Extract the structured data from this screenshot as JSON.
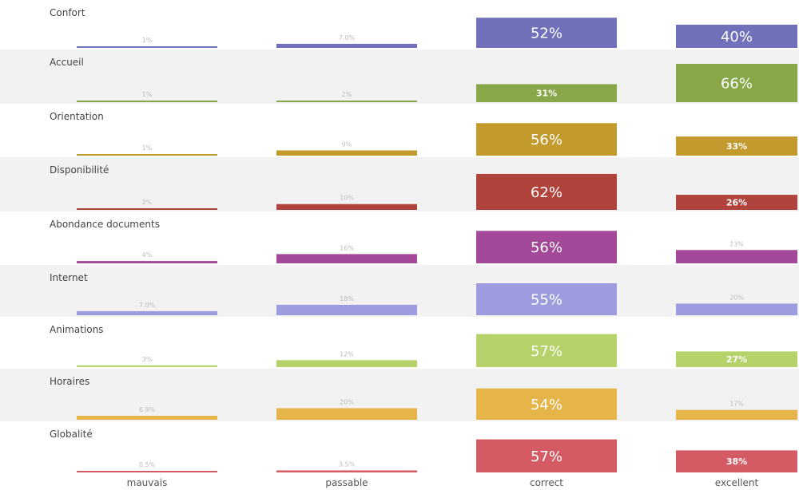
{
  "chart_data": {
    "type": "bar",
    "categories": [
      "mauvais",
      "passable",
      "correct",
      "excellent"
    ],
    "rows": [
      {
        "label": "Confort",
        "values": [
          1,
          7.0,
          52,
          40
        ],
        "labels": [
          "1%",
          "7.0%",
          "52%",
          "40%"
        ],
        "color": "#7070bb"
      },
      {
        "label": "Accueil",
        "values": [
          1,
          2,
          31,
          66
        ],
        "labels": [
          "1%",
          "2%",
          "31%",
          "66%"
        ],
        "color": "#87a748"
      },
      {
        "label": "Orientation",
        "values": [
          1,
          9,
          56,
          33
        ],
        "labels": [
          "1%",
          "9%",
          "56%",
          "33%"
        ],
        "color": "#c39a2e"
      },
      {
        "label": "Disponibilité",
        "values": [
          2,
          10,
          62,
          26
        ],
        "labels": [
          "2%",
          "10%",
          "62%",
          "26%"
        ],
        "color": "#b0443c"
      },
      {
        "label": "Abondance documents",
        "values": [
          4,
          16,
          56,
          23
        ],
        "labels": [
          "4%",
          "16%",
          "56%",
          "23%"
        ],
        "color": "#a4489a"
      },
      {
        "label": "Internet",
        "values": [
          7.0,
          18,
          55,
          20
        ],
        "labels": [
          "7.0%",
          "18%",
          "55%",
          "20%"
        ],
        "color": "#9c9cde"
      },
      {
        "label": "Animations",
        "values": [
          3,
          12,
          57,
          27
        ],
        "labels": [
          "3%",
          "12%",
          "57%",
          "27%"
        ],
        "color": "#b6d26a"
      },
      {
        "label": "Horaires",
        "values": [
          6.9,
          20,
          54,
          17
        ],
        "labels": [
          "6.9%",
          "20%",
          "54%",
          "17%"
        ],
        "color": "#e6b54a"
      },
      {
        "label": "Globalité",
        "values": [
          0.5,
          3.5,
          57,
          38
        ],
        "labels": [
          "0.5%",
          "3.5%",
          "57%",
          "38%"
        ],
        "color": "#d45a63"
      }
    ],
    "ylim": [
      0,
      66
    ],
    "striped_rows": true,
    "legend": "none",
    "grid": false
  }
}
